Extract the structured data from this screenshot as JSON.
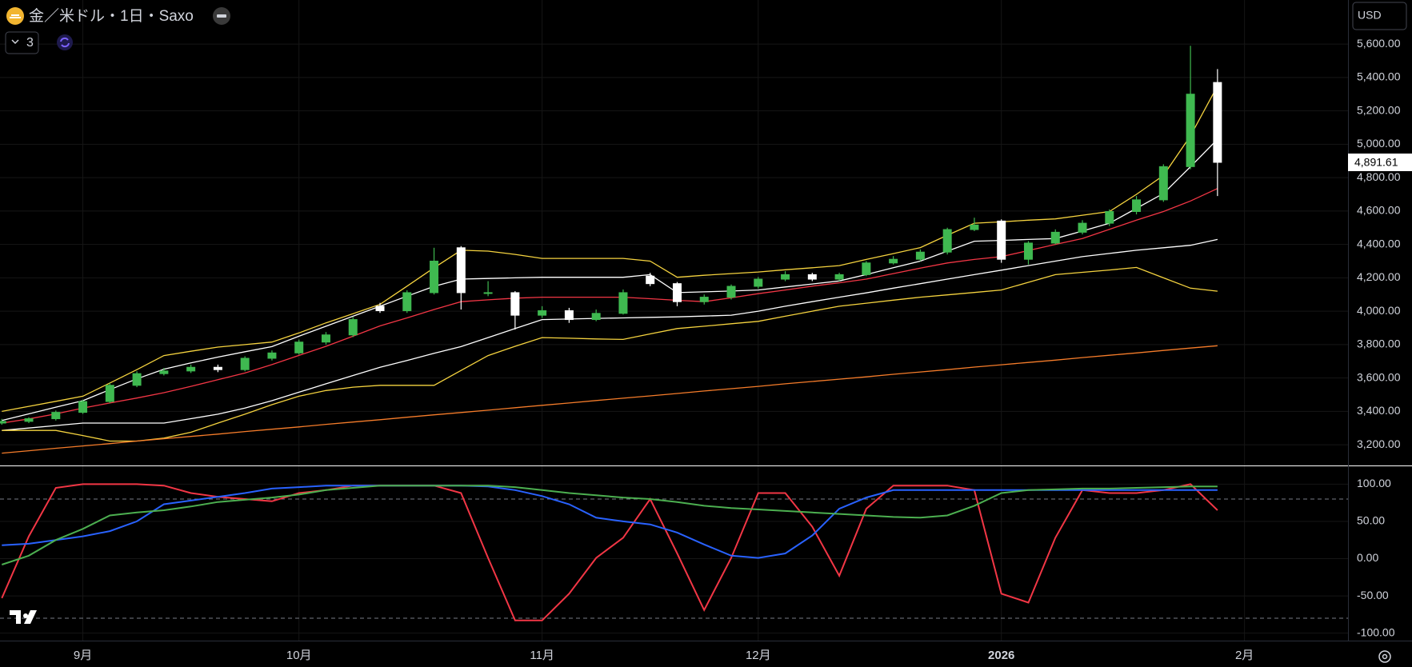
{
  "header": {
    "title": "金／米ドル・1日・Saxo",
    "indicator_count": 3,
    "currency": "USD"
  },
  "chart_data": [
    {
      "type": "candlestick",
      "categories": [
        null,
        null,
        null,
        "9月",
        null,
        null,
        null,
        null,
        null,
        null,
        null,
        "10月",
        null,
        null,
        null,
        null,
        null,
        null,
        null,
        null,
        "11月",
        null,
        null,
        null,
        null,
        null,
        null,
        null,
        "12月",
        null,
        null,
        null,
        null,
        null,
        null,
        null,
        null,
        "2026",
        null,
        null,
        null,
        null,
        null,
        null,
        null,
        null,
        "2月"
      ],
      "open": [
        3330,
        3340,
        3356,
        3394,
        3459,
        3556,
        3626,
        3642,
        3664,
        3650,
        3718,
        3750,
        3815,
        3858,
        4030,
        4003,
        4111,
        4380,
        4111,
        4111,
        3976,
        4003,
        3950,
        3987,
        4210,
        4165,
        4057,
        4084,
        4149,
        4192,
        4219,
        4192,
        4219,
        4289,
        4311,
        4354,
        4489,
        4540,
        4311,
        4408,
        4473,
        4527,
        4597,
        4667,
        4866,
        5370,
        null
      ],
      "high": [
        3355,
        3365,
        3405,
        3470,
        3570,
        3640,
        3660,
        3680,
        3680,
        3730,
        3765,
        3830,
        3875,
        3965,
        4050,
        4125,
        4380,
        4390,
        4180,
        4120,
        4030,
        4020,
        4010,
        4130,
        4230,
        4175,
        4100,
        4160,
        4205,
        4240,
        4230,
        4230,
        4300,
        4330,
        4370,
        4500,
        4560,
        4550,
        4420,
        4490,
        4545,
        4610,
        4690,
        4880,
        5590,
        5450,
        null
      ],
      "low": [
        3320,
        3330,
        3345,
        3385,
        3450,
        3545,
        3615,
        3630,
        3635,
        3640,
        3705,
        3740,
        3800,
        3845,
        3990,
        3990,
        4100,
        4010,
        4090,
        3890,
        3960,
        3930,
        3940,
        3980,
        4150,
        4030,
        4040,
        4070,
        4135,
        4180,
        4180,
        4180,
        4210,
        4280,
        4300,
        4340,
        4480,
        4290,
        4280,
        4400,
        4460,
        4510,
        4580,
        4655,
        4850,
        4690,
        null
      ],
      "close": [
        3340,
        3356,
        3394,
        3459,
        3556,
        3626,
        3642,
        3664,
        3650,
        3718,
        3750,
        3815,
        3858,
        3950,
        4003,
        4111,
        4300,
        4111,
        4111,
        3976,
        4003,
        3950,
        3987,
        4111,
        4165,
        4057,
        4084,
        4149,
        4192,
        4219,
        4192,
        4219,
        4289,
        4311,
        4354,
        4489,
        4516,
        4311,
        4408,
        4473,
        4527,
        4597,
        4667,
        4866,
        5300,
        4891.61,
        null
      ],
      "up_color": "#3fb950",
      "down_color": "#ffffff",
      "series": [
        {
          "color": "#f5d33f",
          "values": [
            3400,
            3430,
            3460,
            3491,
            3570,
            3650,
            3734,
            3760,
            3785,
            3800,
            3815,
            3870,
            3930,
            3985,
            4041,
            4150,
            4260,
            4365,
            4360,
            4340,
            4316,
            4316,
            4316,
            4316,
            4300,
            4203,
            4215,
            4225,
            4235,
            4248,
            4260,
            4273,
            4310,
            4345,
            4381,
            4455,
            4527,
            4535,
            4545,
            4553,
            4575,
            4597,
            4700,
            4813,
            5050,
            5350,
            null
          ]
        },
        {
          "color": "#ffffff",
          "values": [
            3345,
            3385,
            3425,
            3464,
            3530,
            3595,
            3653,
            3690,
            3725,
            3757,
            3788,
            3850,
            3910,
            3970,
            4030,
            4090,
            4149,
            4192,
            4196,
            4200,
            4203,
            4203,
            4203,
            4203,
            4219,
            4111,
            4116,
            4121,
            4127,
            4145,
            4163,
            4181,
            4220,
            4260,
            4300,
            4360,
            4419,
            4424,
            4430,
            4435,
            4480,
            4527,
            4616,
            4705,
            4865,
            5030,
            null
          ]
        },
        {
          "color": "#f23645",
          "values": [
            3330,
            3355,
            3385,
            3420,
            3450,
            3480,
            3512,
            3550,
            3590,
            3630,
            3680,
            3735,
            3790,
            3850,
            3912,
            3960,
            4010,
            4057,
            4068,
            4078,
            4084,
            4084,
            4084,
            4084,
            4075,
            4065,
            4057,
            4080,
            4105,
            4127,
            4150,
            4170,
            4192,
            4225,
            4258,
            4289,
            4310,
            4327,
            4363,
            4400,
            4435,
            4490,
            4545,
            4597,
            4660,
            4735,
            null
          ]
        },
        {
          "color": "#ffffff",
          "values": [
            3286,
            3300,
            3315,
            3330,
            3330,
            3330,
            3330,
            3356,
            3383,
            3420,
            3464,
            3515,
            3565,
            3615,
            3664,
            3705,
            3748,
            3788,
            3842,
            3896,
            3950,
            3953,
            3957,
            3960,
            3963,
            3966,
            3971,
            3976,
            4000,
            4030,
            4057,
            4084,
            4110,
            4138,
            4165,
            4192,
            4219,
            4246,
            4273,
            4300,
            4327,
            4346,
            4365,
            4380,
            4395,
            4430,
            null
          ]
        },
        {
          "color": "#f5d33f",
          "values": [
            3286,
            3286,
            3286,
            3255,
            3222,
            3222,
            3240,
            3275,
            3330,
            3383,
            3440,
            3491,
            3525,
            3545,
            3556,
            3556,
            3556,
            3645,
            3734,
            3790,
            3842,
            3838,
            3834,
            3831,
            3864,
            3896,
            3910,
            3925,
            3939,
            3970,
            4000,
            4030,
            4048,
            4066,
            4084,
            4098,
            4112,
            4127,
            4173,
            4219,
            4233,
            4247,
            4262,
            4200,
            4138,
            4120,
            null
          ]
        },
        {
          "color": "#f57c2a",
          "values": [
            3150,
            3164,
            3179,
            3193,
            3207,
            3222,
            3236,
            3250,
            3264,
            3279,
            3293,
            3307,
            3322,
            3336,
            3350,
            3365,
            3379,
            3393,
            3407,
            3422,
            3436,
            3450,
            3465,
            3479,
            3493,
            3507,
            3522,
            3536,
            3550,
            3565,
            3579,
            3593,
            3607,
            3622,
            3636,
            3650,
            3665,
            3679,
            3693,
            3707,
            3722,
            3736,
            3750,
            3765,
            3779,
            3793,
            null
          ]
        }
      ],
      "ylim": [
        3076,
        5864
      ],
      "yticks": [
        {
          "value": 3200,
          "label": "3,200.00"
        },
        {
          "value": 3400,
          "label": "3,400.00"
        },
        {
          "value": 3600,
          "label": "3,600.00"
        },
        {
          "value": 3800,
          "label": "3,800.00"
        },
        {
          "value": 4000,
          "label": "4,000.00"
        },
        {
          "value": 4200,
          "label": "4,200.00"
        },
        {
          "value": 4400,
          "label": "4,400.00"
        },
        {
          "value": 4600,
          "label": "4,600.00"
        },
        {
          "value": 4800,
          "label": "4,800.00"
        },
        {
          "value": 5000,
          "label": "5,000.00"
        },
        {
          "value": 5200,
          "label": "5,200.00"
        },
        {
          "value": 5400,
          "label": "5,400.00"
        },
        {
          "value": 5600,
          "label": "5,600.00"
        }
      ],
      "last_price": {
        "value": 4891.61,
        "label": "4,891.61"
      },
      "grid": true
    },
    {
      "type": "line",
      "series": [
        {
          "color": "#f23645",
          "values": [
            -53,
            30,
            95,
            100,
            100,
            100,
            98,
            88,
            83,
            80,
            77,
            88,
            92,
            98,
            98,
            98,
            98,
            88,
            1,
            -83,
            -83,
            -47,
            1,
            28,
            80,
            7,
            -69,
            1,
            88,
            88,
            43,
            -23,
            67,
            98,
            98,
            98,
            92,
            -47,
            -59,
            28,
            92,
            88,
            88,
            92,
            100,
            65,
            null
          ]
        },
        {
          "color": "#2962ff",
          "values": [
            18,
            20,
            25,
            30,
            37,
            50,
            73,
            78,
            83,
            88,
            94,
            96,
            98,
            98,
            98,
            98,
            98,
            98,
            97,
            92,
            84,
            73,
            55,
            50,
            46,
            35,
            19,
            4,
            1,
            7,
            31,
            67,
            82,
            92,
            92,
            92,
            92,
            92,
            92,
            92,
            92,
            92,
            92,
            92,
            92,
            92,
            null
          ]
        },
        {
          "color": "#4caf50",
          "values": [
            -8,
            4,
            25,
            40,
            58,
            62,
            65,
            70,
            76,
            79,
            82,
            86,
            92,
            95,
            98,
            98,
            98,
            98,
            98,
            96,
            92,
            88,
            85,
            82,
            80,
            76,
            71,
            68,
            66,
            64,
            62,
            60,
            58,
            56,
            55,
            58,
            71,
            88,
            92,
            93,
            94,
            94,
            95,
            96,
            97,
            97,
            null
          ]
        }
      ],
      "ylim": [
        -110,
        124
      ],
      "yticks": [
        {
          "value": 100,
          "label": "100.00"
        },
        {
          "value": 50,
          "label": "50.00"
        },
        {
          "value": 0,
          "label": "0.00"
        },
        {
          "value": -50,
          "label": "-50.00"
        },
        {
          "value": -100,
          "label": "-100.00"
        }
      ],
      "hlines": [
        80,
        -80
      ],
      "grid": true
    }
  ]
}
